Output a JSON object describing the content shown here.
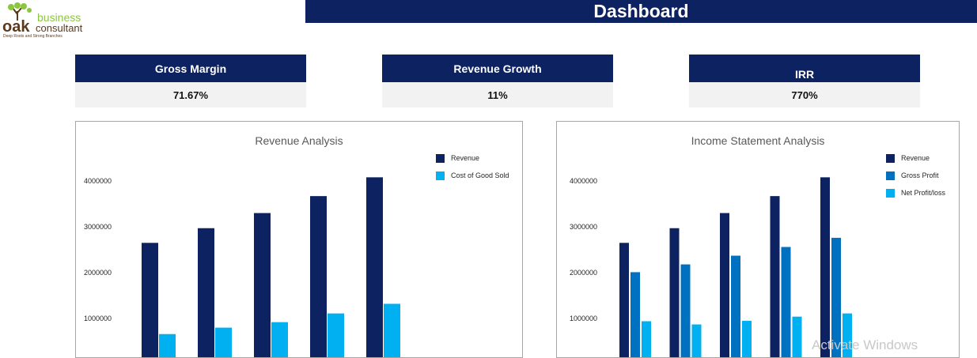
{
  "brand": {
    "logo_text_1": "oak",
    "logo_text_2": "business",
    "logo_text_3": "consultant",
    "tagline": "Deep Roots and Strong Branches",
    "green": "#8cc63f",
    "brown": "#5a3a1e"
  },
  "header": {
    "title": "Dashboard"
  },
  "kpis": [
    {
      "label": "Gross Margin",
      "value": "71.67%"
    },
    {
      "label": "Revenue Growth",
      "value": "11%"
    },
    {
      "label": "IRR",
      "value": "770%"
    }
  ],
  "colors": {
    "navy": "#0d2260",
    "blue": "#0070c0",
    "light_blue": "#00b0f0"
  },
  "chart_data": [
    {
      "type": "bar",
      "title": "Revenue Analysis",
      "categories": [
        "",
        "",
        "",
        "",
        ""
      ],
      "series": [
        {
          "name": "Revenue",
          "color": "#0d2260",
          "values": [
            2650000,
            2970000,
            3300000,
            3670000,
            4080000
          ]
        },
        {
          "name": "Cost of Good Sold",
          "color": "#00b0f0",
          "values": [
            660000,
            800000,
            920000,
            1110000,
            1320000
          ]
        }
      ],
      "yticks": [
        "1000000",
        "2000000",
        "3000000",
        "4000000"
      ],
      "legend": "top-right",
      "grid": false
    },
    {
      "type": "bar",
      "title": "Income Statement Analysis",
      "categories": [
        "",
        "",
        "",
        "",
        ""
      ],
      "series": [
        {
          "name": "Revenue",
          "color": "#0d2260",
          "values": [
            2650000,
            2970000,
            3300000,
            3670000,
            4080000
          ]
        },
        {
          "name": "Gross Profit",
          "color": "#0070c0",
          "values": [
            2010000,
            2180000,
            2370000,
            2560000,
            2760000
          ]
        },
        {
          "name": "Net Profit/loss",
          "color": "#00b0f0",
          "values": [
            940000,
            870000,
            950000,
            1040000,
            1110000
          ]
        }
      ],
      "yticks": [
        "1000000",
        "2000000",
        "3000000",
        "4000000"
      ],
      "legend": "top-right",
      "grid": false
    }
  ],
  "watermark": "Activate Windows"
}
